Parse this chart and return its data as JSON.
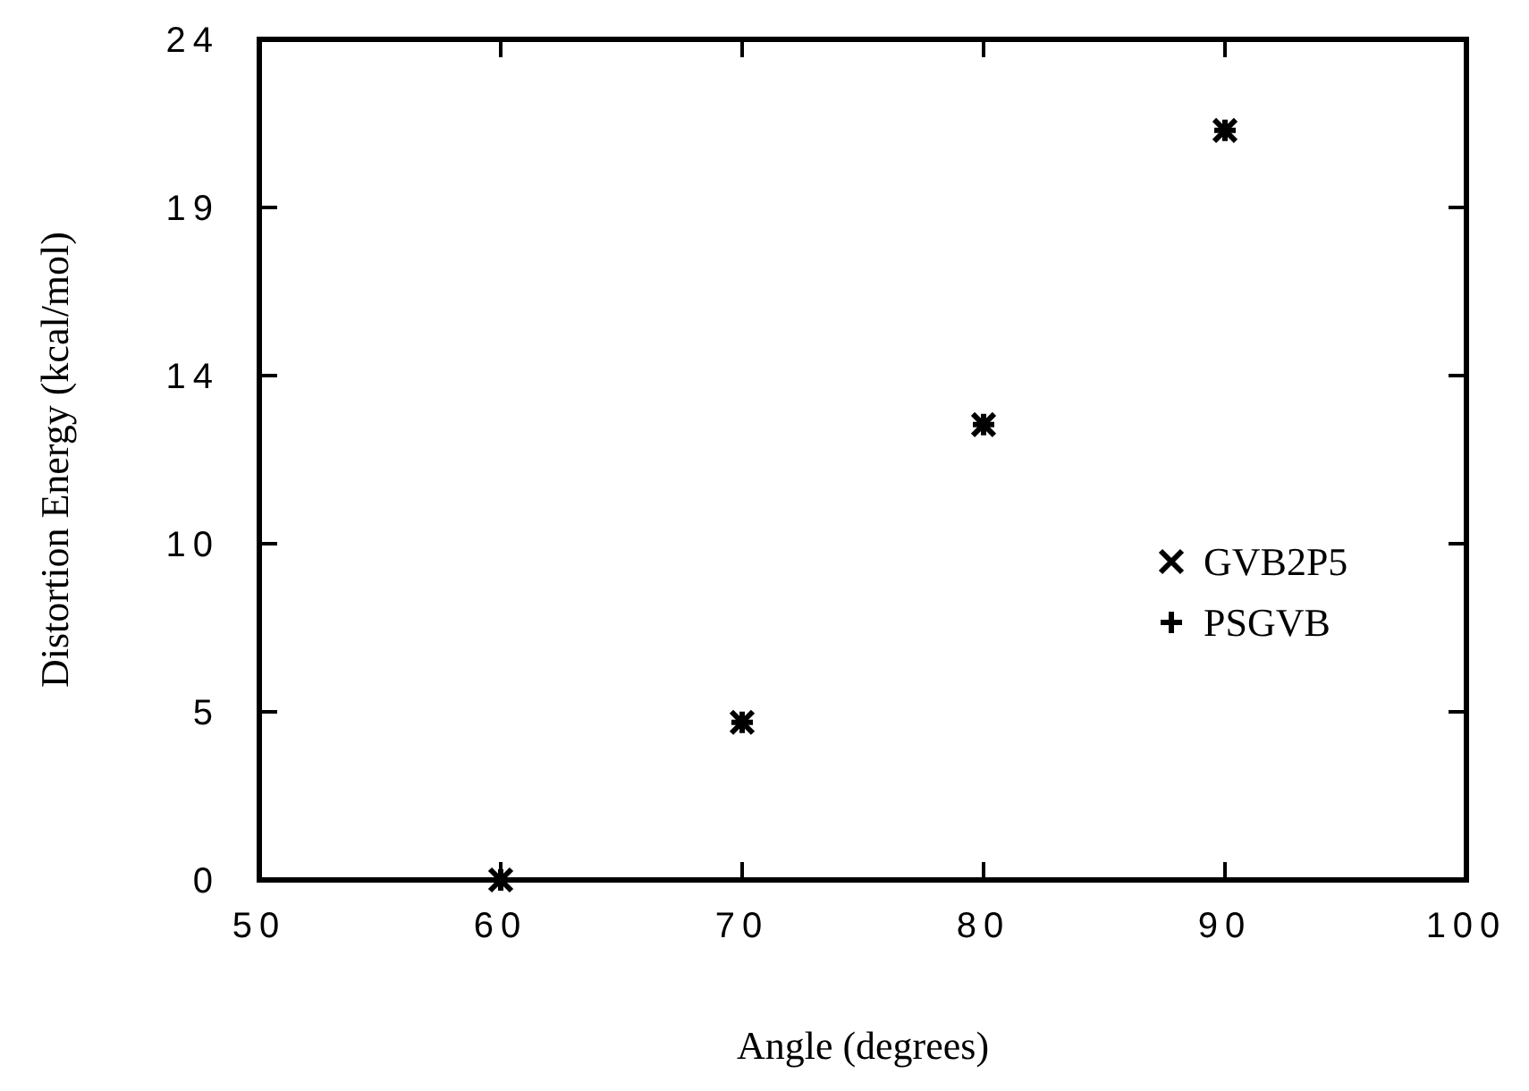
{
  "chart_data": {
    "type": "scatter",
    "xlabel": "Angle (degrees)",
    "ylabel": "Distortion Energy (kcal/mol)",
    "x": [
      60,
      70,
      80,
      90
    ],
    "series": [
      {
        "name": "GVB2P5",
        "color": "#000000",
        "marker": "x",
        "values": [
          0,
          4.5,
          13.0,
          21.4
        ]
      },
      {
        "name": "PSGVB",
        "color": "#000000",
        "marker": "cross",
        "values": [
          0,
          4.5,
          13.0,
          21.4
        ]
      }
    ],
    "xlim": [
      50,
      100
    ],
    "xticks": [
      50,
      60,
      70,
      80,
      90,
      100
    ],
    "ylim": [
      0,
      24
    ],
    "yticks": [
      {
        "value": 0,
        "label": "0"
      },
      {
        "value": 4.8,
        "label": "5"
      },
      {
        "value": 9.6,
        "label": "10"
      },
      {
        "value": 14.4,
        "label": "14"
      },
      {
        "value": 19.2,
        "label": "19"
      },
      {
        "value": 24,
        "label": "24"
      }
    ],
    "legend": "right",
    "grid": false
  }
}
